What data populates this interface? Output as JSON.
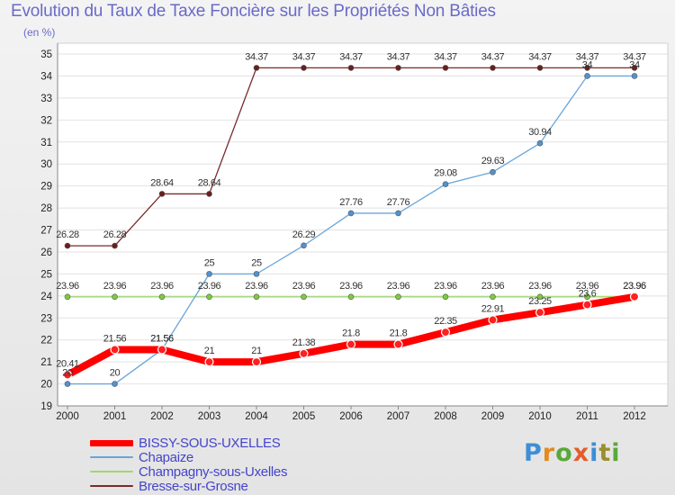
{
  "chart_data": {
    "type": "line",
    "title": "Evolution du Taux de Taxe Foncière sur les Propriétés Non Bâties",
    "ylabel": "(en %)",
    "categories": [
      "2000",
      "2001",
      "2002",
      "2003",
      "2004",
      "2005",
      "2006",
      "2007",
      "2008",
      "2009",
      "2010",
      "2011",
      "2012"
    ],
    "ylim": [
      19,
      35
    ],
    "yticks": [
      19,
      20,
      21,
      22,
      23,
      24,
      25,
      26,
      27,
      28,
      29,
      30,
      31,
      32,
      33,
      34,
      35
    ],
    "grid": "horizontal",
    "legend_position": "bottom-left",
    "series": [
      {
        "name": "BISSY-SOUS-UXELLES",
        "color": "#ff0000",
        "values": [
          20.41,
          21.56,
          21.56,
          21,
          21,
          21.38,
          21.8,
          21.8,
          22.35,
          22.91,
          23.25,
          23.6,
          23.96
        ],
        "labels": [
          "20.41",
          "21.56",
          "21.56",
          "21",
          "21",
          "21.38",
          "21.8",
          "21.8",
          "22.35",
          "22.91",
          "23.25",
          "23.6",
          "23.96"
        ]
      },
      {
        "name": "Chapaize",
        "color": "#6aa6d8",
        "values": [
          20,
          20,
          21.56,
          25,
          25,
          26.29,
          27.76,
          27.76,
          29.08,
          29.63,
          30.94,
          34,
          34
        ],
        "labels": [
          "20",
          "20",
          "21.56",
          "25",
          "25",
          "26.29",
          "27.76",
          "27.76",
          "29.08",
          "29.63",
          "30.94",
          "34",
          "34"
        ]
      },
      {
        "name": "Champagny-sous-Uxelles",
        "color": "#9ed86e",
        "values": [
          23.96,
          23.96,
          23.96,
          23.96,
          23.96,
          23.96,
          23.96,
          23.96,
          23.96,
          23.96,
          23.96,
          23.96,
          23.96
        ],
        "labels": [
          "23.96",
          "23.96",
          "23.96",
          "23.96",
          "23.96",
          "23.96",
          "23.96",
          "23.96",
          "23.96",
          "23.96",
          "23.96",
          "23.96",
          "23.96"
        ]
      },
      {
        "name": "Bresse-sur-Grosne",
        "color": "#7a2a2a",
        "values": [
          26.28,
          26.28,
          28.64,
          28.64,
          34.37,
          34.37,
          34.37,
          34.37,
          34.37,
          34.37,
          34.37,
          34.37,
          34.37
        ],
        "labels": [
          "26.28",
          "26.28",
          "28.64",
          "28.64",
          "34.37",
          "34.37",
          "34.37",
          "34.37",
          "34.37",
          "34.37",
          "34.37",
          "34.37",
          "34.37"
        ]
      }
    ]
  },
  "logo": {
    "letters": [
      "P",
      "r",
      "o",
      "x",
      "i",
      "t",
      "i"
    ]
  }
}
